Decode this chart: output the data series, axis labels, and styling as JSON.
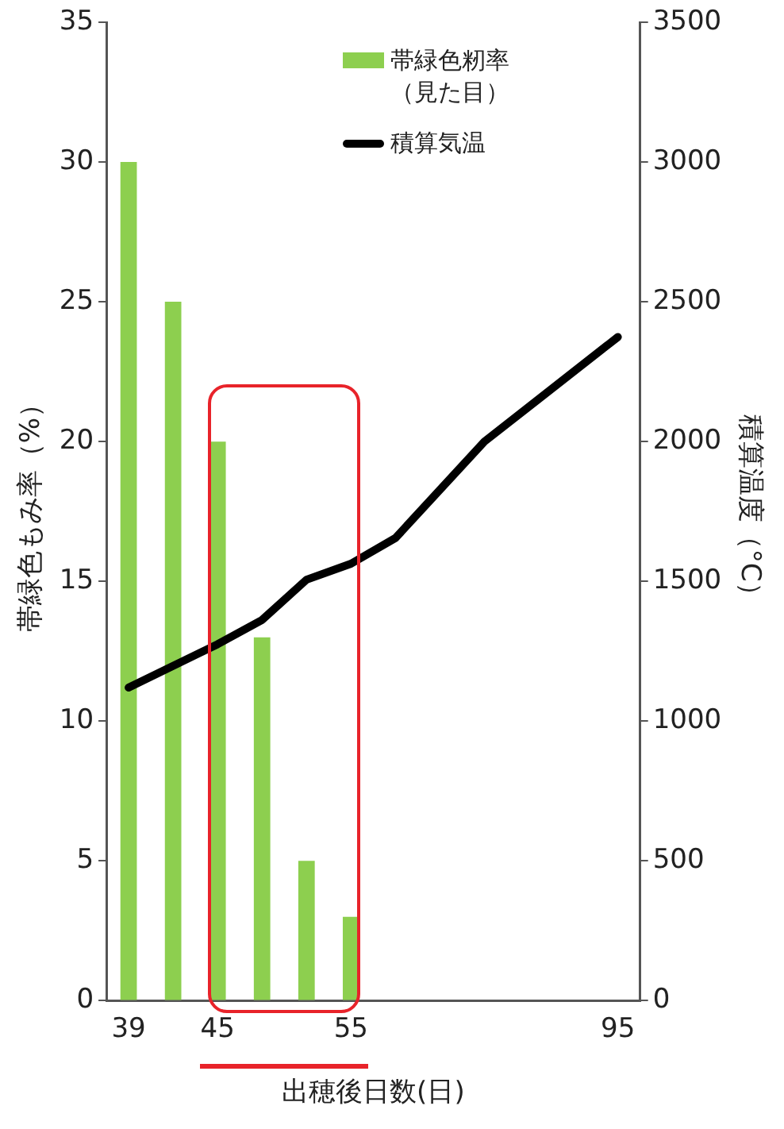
{
  "chart_data": {
    "type": "bar",
    "categories": [
      "39",
      null,
      "45",
      null,
      null,
      "55",
      null,
      null,
      null,
      null,
      null,
      "95"
    ],
    "xlabel": "出穂後日数(日)",
    "ylabel": "帯緑色もみ率（%）",
    "y2label": "積算温度（°C）",
    "series": [
      {
        "name": "帯緑色籾率（見た目）",
        "color": "#8dcf4f",
        "values": [
          30,
          25,
          20,
          13,
          5,
          3,
          null,
          null,
          null,
          null,
          null,
          null
        ]
      },
      {
        "name": "積算気温",
        "type": "line",
        "axis": "y2",
        "color": "#000000",
        "values": [
          1120,
          null,
          1275,
          1362,
          1506,
          1563,
          1655,
          null,
          2000,
          null,
          null,
          2374
        ]
      }
    ],
    "ylim": [
      0,
      35
    ],
    "yticks": [
      0,
      5,
      10,
      15,
      20,
      25,
      30,
      35
    ],
    "y2lim": [
      0,
      3500
    ],
    "y2ticks": [
      0,
      500,
      1000,
      1500,
      2000,
      2500,
      3000,
      3500
    ],
    "grid": false,
    "legend": "top right",
    "marker": "none",
    "line_style": "solid"
  }
}
